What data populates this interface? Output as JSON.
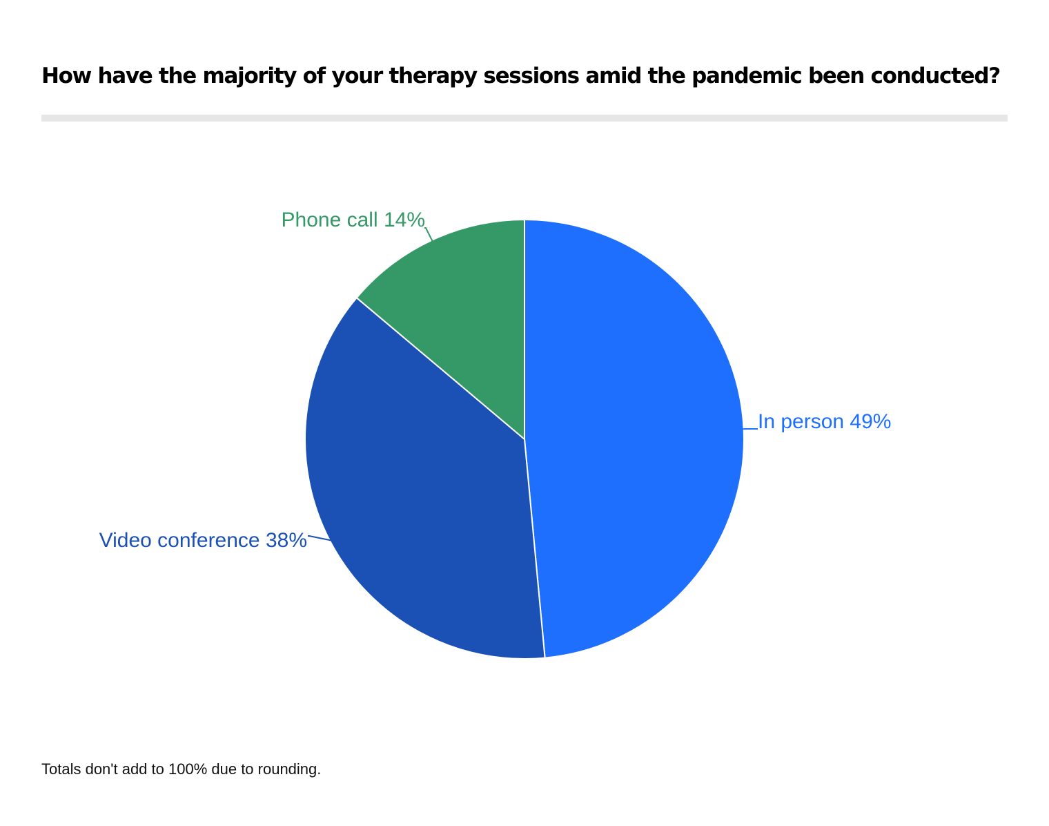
{
  "chart_data": {
    "type": "pie",
    "title": "How have the majority of your therapy sessions amid the pandemic been conducted?",
    "slices": [
      {
        "name": "In person",
        "value": 49,
        "label": "In person 49%",
        "color": "#1f6ffe"
      },
      {
        "name": "Video conference",
        "value": 38,
        "label": "Video conference 38%",
        "color": "#1b51b4"
      },
      {
        "name": "Phone call",
        "value": 14,
        "label": "Phone call 14%",
        "color": "#359967"
      }
    ],
    "start": "12 o'clock",
    "direction": "clockwise",
    "footnote": "Totals don't add to 100% due to rounding."
  }
}
